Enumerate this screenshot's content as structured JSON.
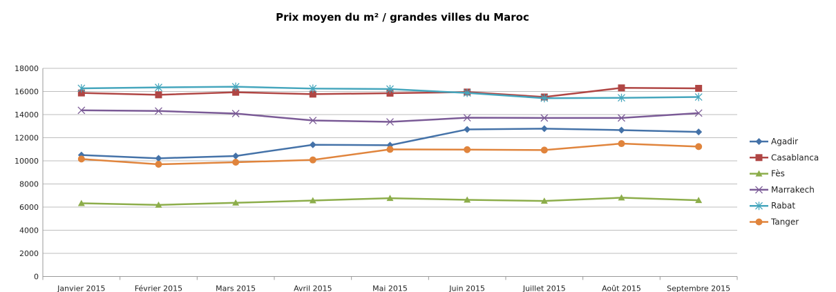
{
  "chart_data": {
    "type": "line",
    "title": "Prix moyen du m² / grandes villes du Maroc",
    "categories": [
      "Janvier 2015",
      "Février 2015",
      "Mars 2015",
      "Avril 2015",
      "Mai 2015",
      "Juin 2015",
      "Juillet 2015",
      "Août 2015",
      "Septembre 2015"
    ],
    "ylim": [
      0,
      18000
    ],
    "yticks": [
      0,
      2000,
      4000,
      6000,
      8000,
      10000,
      12000,
      14000,
      16000,
      18000
    ],
    "grid": true,
    "legend": "right",
    "series": [
      {
        "name": "Agadir",
        "color": "#4472a8",
        "marker": "diamond",
        "values": [
          10500,
          10220,
          10420,
          11390,
          11350,
          12720,
          12780,
          12660,
          12500
        ]
      },
      {
        "name": "Casablanca",
        "color": "#b04644",
        "marker": "square",
        "values": [
          15870,
          15710,
          15930,
          15770,
          15850,
          15950,
          15520,
          16310,
          16270
        ]
      },
      {
        "name": "Fès",
        "color": "#8cad4a",
        "marker": "triangle",
        "values": [
          6330,
          6190,
          6370,
          6570,
          6770,
          6630,
          6530,
          6810,
          6590
        ]
      },
      {
        "name": "Marrakech",
        "color": "#7a5a96",
        "marker": "x",
        "values": [
          14370,
          14310,
          14090,
          13490,
          13370,
          13730,
          13710,
          13710,
          14130
        ]
      },
      {
        "name": "Rabat",
        "color": "#45a6bd",
        "marker": "star",
        "values": [
          16270,
          16350,
          16410,
          16250,
          16210,
          15870,
          15420,
          15450,
          15520
        ]
      },
      {
        "name": "Tanger",
        "color": "#e0843c",
        "marker": "circle",
        "values": [
          10160,
          9700,
          9880,
          10080,
          10990,
          10970,
          10930,
          11490,
          11230
        ]
      }
    ]
  }
}
